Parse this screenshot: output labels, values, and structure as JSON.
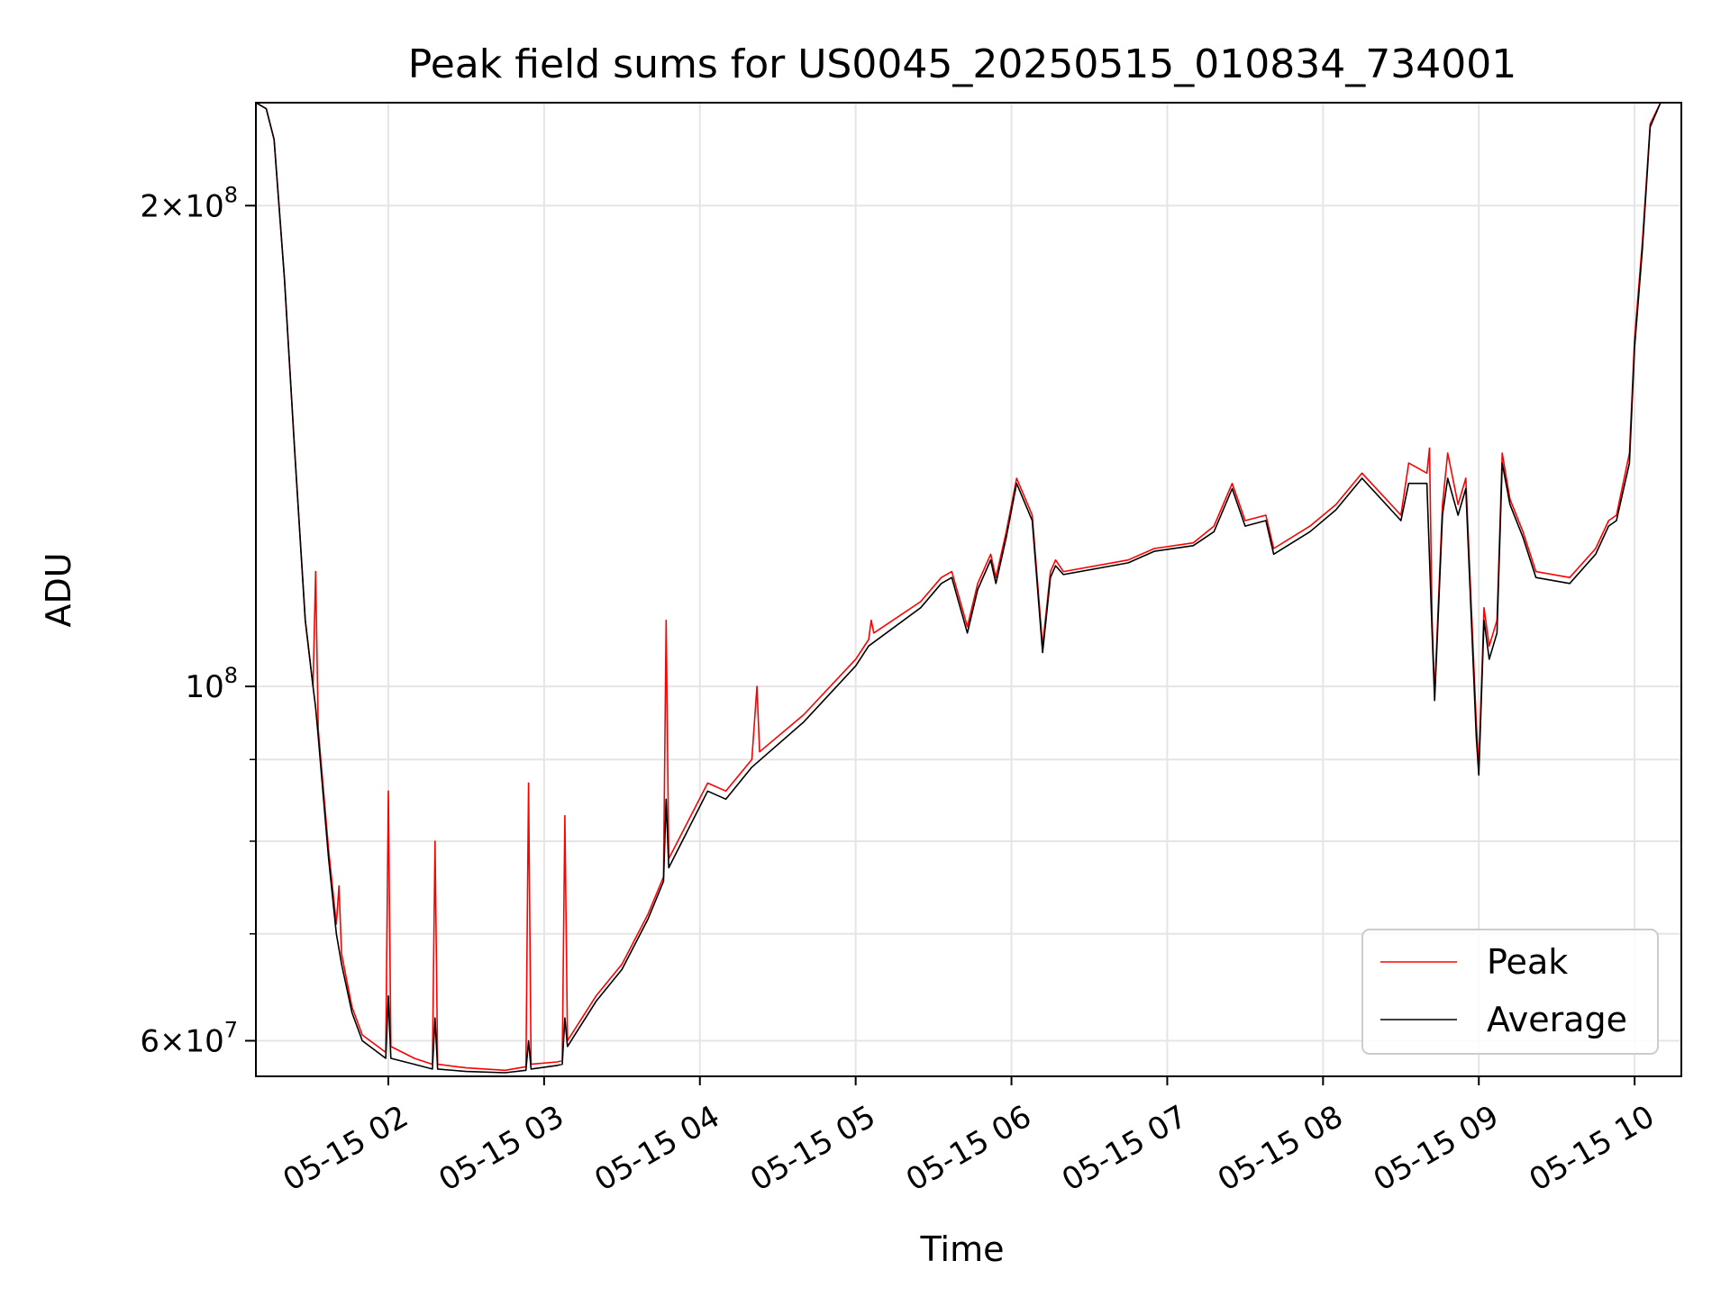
{
  "chart_data": {
    "type": "line",
    "title": "Peak field sums for US0045_20250515_010834_734001",
    "xlabel": "Time",
    "ylabel": "ADU",
    "y_scale": "log",
    "xlim": [
      "2025-05-15 01:09",
      "2025-05-15 10:18"
    ],
    "ylim": [
      57000000,
      232000000
    ],
    "grid": true,
    "legend_position": "lower right",
    "x_ticks": [
      {
        "t": "2025-05-15 02:00",
        "label": "05-15 02"
      },
      {
        "t": "2025-05-15 03:00",
        "label": "05-15 03"
      },
      {
        "t": "2025-05-15 04:00",
        "label": "05-15 04"
      },
      {
        "t": "2025-05-15 05:00",
        "label": "05-15 05"
      },
      {
        "t": "2025-05-15 06:00",
        "label": "05-15 06"
      },
      {
        "t": "2025-05-15 07:00",
        "label": "05-15 07"
      },
      {
        "t": "2025-05-15 08:00",
        "label": "05-15 08"
      },
      {
        "t": "2025-05-15 09:00",
        "label": "05-15 09"
      },
      {
        "t": "2025-05-15 10:00",
        "label": "05-15 10"
      }
    ],
    "y_major_ticks": [
      {
        "value": 60000000,
        "label": "6×10⁷",
        "mant": "6",
        "exp": "7"
      },
      {
        "value": 100000000,
        "label": "10⁸",
        "mant": "",
        "exp": "8"
      },
      {
        "value": 200000000,
        "label": "2×10⁸",
        "mant": "2",
        "exp": "8"
      }
    ],
    "y_minor_ticks": [
      70000000,
      80000000,
      90000000
    ],
    "series": [
      {
        "name": "Peak",
        "color": "#ff0000",
        "points": [
          [
            "2025-05-15 01:09",
            232000000
          ],
          [
            "2025-05-15 01:13",
            230000000
          ],
          [
            "2025-05-15 01:16",
            220000000
          ],
          [
            "2025-05-15 01:20",
            180000000
          ],
          [
            "2025-05-15 01:24",
            140000000
          ],
          [
            "2025-05-15 01:28",
            110000000
          ],
          [
            "2025-05-15 01:31",
            100000000
          ],
          [
            "2025-05-15 01:32",
            118000000
          ],
          [
            "2025-05-15 01:33",
            94000000
          ],
          [
            "2025-05-15 01:37",
            79000000
          ],
          [
            "2025-05-15 01:40",
            71000000
          ],
          [
            "2025-05-15 01:41",
            75000000
          ],
          [
            "2025-05-15 01:42",
            68000000
          ],
          [
            "2025-05-15 01:46",
            63000000
          ],
          [
            "2025-05-15 01:50",
            60500000
          ],
          [
            "2025-05-15 01:59",
            59000000
          ],
          [
            "2025-05-15 02:00",
            86000000
          ],
          [
            "2025-05-15 02:01",
            59500000
          ],
          [
            "2025-05-15 02:10",
            58500000
          ],
          [
            "2025-05-15 02:17",
            58000000
          ],
          [
            "2025-05-15 02:18",
            80000000
          ],
          [
            "2025-05-15 02:19",
            58000000
          ],
          [
            "2025-05-15 02:30",
            57700000
          ],
          [
            "2025-05-15 02:45",
            57500000
          ],
          [
            "2025-05-15 02:53",
            57800000
          ],
          [
            "2025-05-15 02:54",
            87000000
          ],
          [
            "2025-05-15 02:55",
            58000000
          ],
          [
            "2025-05-15 03:05",
            58200000
          ],
          [
            "2025-05-15 03:07",
            58300000
          ],
          [
            "2025-05-15 03:08",
            83000000
          ],
          [
            "2025-05-15 03:09",
            60000000
          ],
          [
            "2025-05-15 03:20",
            64000000
          ],
          [
            "2025-05-15 03:30",
            67000000
          ],
          [
            "2025-05-15 03:40",
            72000000
          ],
          [
            "2025-05-15 03:46",
            76000000
          ],
          [
            "2025-05-15 03:47",
            110000000
          ],
          [
            "2025-05-15 03:48",
            78000000
          ],
          [
            "2025-05-15 04:03",
            87000000
          ],
          [
            "2025-05-15 04:10",
            86000000
          ],
          [
            "2025-05-15 04:20",
            90000000
          ],
          [
            "2025-05-15 04:22",
            100000000
          ],
          [
            "2025-05-15 04:23",
            91000000
          ],
          [
            "2025-05-15 04:40",
            96000000
          ],
          [
            "2025-05-15 05:00",
            104000000
          ],
          [
            "2025-05-15 05:05",
            107000000
          ],
          [
            "2025-05-15 05:06",
            110000000
          ],
          [
            "2025-05-15 05:07",
            108000000
          ],
          [
            "2025-05-15 05:25",
            113000000
          ],
          [
            "2025-05-15 05:33",
            117000000
          ],
          [
            "2025-05-15 05:37",
            118000000
          ],
          [
            "2025-05-15 05:43",
            109000000
          ],
          [
            "2025-05-15 05:47",
            116000000
          ],
          [
            "2025-05-15 05:52",
            121000000
          ],
          [
            "2025-05-15 05:54",
            117000000
          ],
          [
            "2025-05-15 05:58",
            125000000
          ],
          [
            "2025-05-15 06:02",
            135000000
          ],
          [
            "2025-05-15 06:08",
            128000000
          ],
          [
            "2025-05-15 06:12",
            106000000
          ],
          [
            "2025-05-15 06:15",
            118000000
          ],
          [
            "2025-05-15 06:17",
            120000000
          ],
          [
            "2025-05-15 06:20",
            118000000
          ],
          [
            "2025-05-15 06:45",
            120000000
          ],
          [
            "2025-05-15 06:55",
            122000000
          ],
          [
            "2025-05-15 07:10",
            123000000
          ],
          [
            "2025-05-15 07:18",
            126000000
          ],
          [
            "2025-05-15 07:25",
            134000000
          ],
          [
            "2025-05-15 07:30",
            127000000
          ],
          [
            "2025-05-15 07:38",
            128000000
          ],
          [
            "2025-05-15 07:41",
            122000000
          ],
          [
            "2025-05-15 07:55",
            126000000
          ],
          [
            "2025-05-15 08:05",
            130000000
          ],
          [
            "2025-05-15 08:15",
            136000000
          ],
          [
            "2025-05-15 08:30",
            128000000
          ],
          [
            "2025-05-15 08:33",
            138000000
          ],
          [
            "2025-05-15 08:40",
            136000000
          ],
          [
            "2025-05-15 08:41",
            141000000
          ],
          [
            "2025-05-15 08:42",
            110000000
          ],
          [
            "2025-05-15 08:43",
            99000000
          ],
          [
            "2025-05-15 08:46",
            130000000
          ],
          [
            "2025-05-15 08:48",
            140000000
          ],
          [
            "2025-05-15 08:52",
            130000000
          ],
          [
            "2025-05-15 08:55",
            135000000
          ],
          [
            "2025-05-15 08:59",
            95000000
          ],
          [
            "2025-05-15 09:00",
            89000000
          ],
          [
            "2025-05-15 09:02",
            112000000
          ],
          [
            "2025-05-15 09:04",
            106000000
          ],
          [
            "2025-05-15 09:07",
            110000000
          ],
          [
            "2025-05-15 09:09",
            140000000
          ],
          [
            "2025-05-15 09:12",
            131000000
          ],
          [
            "2025-05-15 09:17",
            125000000
          ],
          [
            "2025-05-15 09:22",
            118000000
          ],
          [
            "2025-05-15 09:35",
            117000000
          ],
          [
            "2025-05-15 09:45",
            122000000
          ],
          [
            "2025-05-15 09:50",
            127000000
          ],
          [
            "2025-05-15 09:53",
            128000000
          ],
          [
            "2025-05-15 09:58",
            140000000
          ],
          [
            "2025-05-15 10:00",
            165000000
          ],
          [
            "2025-05-15 10:03",
            190000000
          ],
          [
            "2025-05-15 10:06",
            225000000
          ],
          [
            "2025-05-15 10:10",
            232000000
          ],
          [
            "2025-05-15 10:18",
            232000000
          ]
        ]
      },
      {
        "name": "Average",
        "color": "#000000",
        "points": [
          [
            "2025-05-15 01:09",
            232000000
          ],
          [
            "2025-05-15 01:13",
            230000000
          ],
          [
            "2025-05-15 01:16",
            220000000
          ],
          [
            "2025-05-15 01:20",
            180000000
          ],
          [
            "2025-05-15 01:24",
            140000000
          ],
          [
            "2025-05-15 01:28",
            110000000
          ],
          [
            "2025-05-15 01:31",
            100000000
          ],
          [
            "2025-05-15 01:32",
            97000000
          ],
          [
            "2025-05-15 01:33",
            93000000
          ],
          [
            "2025-05-15 01:37",
            78000000
          ],
          [
            "2025-05-15 01:40",
            70000000
          ],
          [
            "2025-05-15 01:42",
            67000000
          ],
          [
            "2025-05-15 01:46",
            62500000
          ],
          [
            "2025-05-15 01:50",
            60000000
          ],
          [
            "2025-05-15 01:59",
            58500000
          ],
          [
            "2025-05-15 02:00",
            64000000
          ],
          [
            "2025-05-15 02:01",
            58500000
          ],
          [
            "2025-05-15 02:10",
            58000000
          ],
          [
            "2025-05-15 02:17",
            57600000
          ],
          [
            "2025-05-15 02:18",
            62000000
          ],
          [
            "2025-05-15 02:19",
            57600000
          ],
          [
            "2025-05-15 02:30",
            57400000
          ],
          [
            "2025-05-15 02:45",
            57300000
          ],
          [
            "2025-05-15 02:53",
            57500000
          ],
          [
            "2025-05-15 02:54",
            60000000
          ],
          [
            "2025-05-15 02:55",
            57600000
          ],
          [
            "2025-05-15 03:05",
            57900000
          ],
          [
            "2025-05-15 03:07",
            58000000
          ],
          [
            "2025-05-15 03:08",
            62000000
          ],
          [
            "2025-05-15 03:09",
            59500000
          ],
          [
            "2025-05-15 03:20",
            63500000
          ],
          [
            "2025-05-15 03:30",
            66500000
          ],
          [
            "2025-05-15 03:40",
            71500000
          ],
          [
            "2025-05-15 03:46",
            75500000
          ],
          [
            "2025-05-15 03:47",
            85000000
          ],
          [
            "2025-05-15 03:48",
            77000000
          ],
          [
            "2025-05-15 04:03",
            86000000
          ],
          [
            "2025-05-15 04:10",
            85000000
          ],
          [
            "2025-05-15 04:20",
            89000000
          ],
          [
            "2025-05-15 04:40",
            95000000
          ],
          [
            "2025-05-15 05:00",
            103000000
          ],
          [
            "2025-05-15 05:05",
            106000000
          ],
          [
            "2025-05-15 05:25",
            112000000
          ],
          [
            "2025-05-15 05:33",
            116000000
          ],
          [
            "2025-05-15 05:37",
            117000000
          ],
          [
            "2025-05-15 05:43",
            108000000
          ],
          [
            "2025-05-15 05:47",
            115000000
          ],
          [
            "2025-05-15 05:52",
            120000000
          ],
          [
            "2025-05-15 05:54",
            116000000
          ],
          [
            "2025-05-15 05:58",
            124000000
          ],
          [
            "2025-05-15 06:02",
            134000000
          ],
          [
            "2025-05-15 06:08",
            127000000
          ],
          [
            "2025-05-15 06:12",
            105000000
          ],
          [
            "2025-05-15 06:15",
            117000000
          ],
          [
            "2025-05-15 06:17",
            119000000
          ],
          [
            "2025-05-15 06:20",
            117500000
          ],
          [
            "2025-05-15 06:45",
            119500000
          ],
          [
            "2025-05-15 06:55",
            121500000
          ],
          [
            "2025-05-15 07:10",
            122500000
          ],
          [
            "2025-05-15 07:18",
            125000000
          ],
          [
            "2025-05-15 07:25",
            133000000
          ],
          [
            "2025-05-15 07:30",
            126000000
          ],
          [
            "2025-05-15 07:38",
            127000000
          ],
          [
            "2025-05-15 07:41",
            121000000
          ],
          [
            "2025-05-15 07:55",
            125000000
          ],
          [
            "2025-05-15 08:05",
            129000000
          ],
          [
            "2025-05-15 08:15",
            135000000
          ],
          [
            "2025-05-15 08:30",
            127000000
          ],
          [
            "2025-05-15 08:33",
            134000000
          ],
          [
            "2025-05-15 08:40",
            134000000
          ],
          [
            "2025-05-15 08:42",
            108000000
          ],
          [
            "2025-05-15 08:43",
            98000000
          ],
          [
            "2025-05-15 08:46",
            128000000
          ],
          [
            "2025-05-15 08:48",
            135000000
          ],
          [
            "2025-05-15 08:52",
            128000000
          ],
          [
            "2025-05-15 08:55",
            133000000
          ],
          [
            "2025-05-15 08:59",
            93000000
          ],
          [
            "2025-05-15 09:00",
            88000000
          ],
          [
            "2025-05-15 09:02",
            110000000
          ],
          [
            "2025-05-15 09:04",
            104000000
          ],
          [
            "2025-05-15 09:07",
            108000000
          ],
          [
            "2025-05-15 09:09",
            138000000
          ],
          [
            "2025-05-15 09:12",
            130000000
          ],
          [
            "2025-05-15 09:17",
            124000000
          ],
          [
            "2025-05-15 09:22",
            117000000
          ],
          [
            "2025-05-15 09:35",
            116000000
          ],
          [
            "2025-05-15 09:45",
            121000000
          ],
          [
            "2025-05-15 09:50",
            126000000
          ],
          [
            "2025-05-15 09:53",
            127000000
          ],
          [
            "2025-05-15 09:58",
            138000000
          ],
          [
            "2025-05-15 10:00",
            163000000
          ],
          [
            "2025-05-15 10:03",
            188000000
          ],
          [
            "2025-05-15 10:06",
            224000000
          ],
          [
            "2025-05-15 10:10",
            232000000
          ],
          [
            "2025-05-15 10:18",
            232000000
          ]
        ]
      }
    ]
  }
}
